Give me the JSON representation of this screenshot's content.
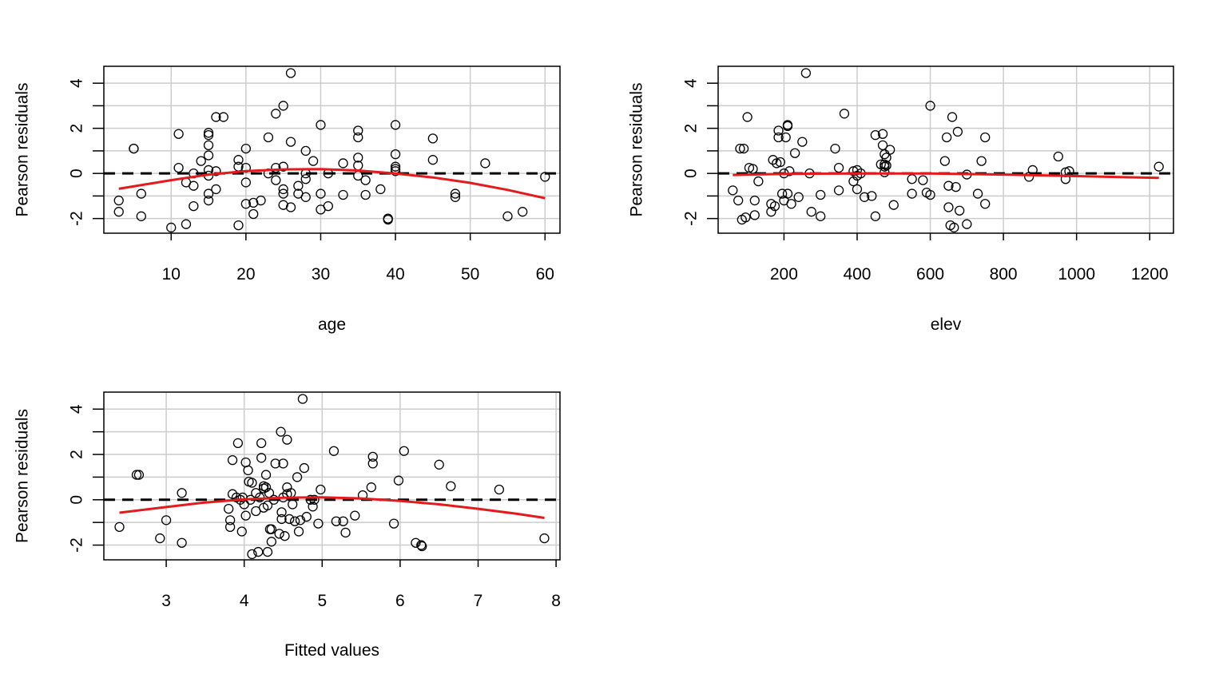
{
  "colors": {
    "points": "#000000",
    "smooth": "#e41a1c",
    "reference": "#000000",
    "grid": "#cccccc"
  },
  "chart_data": [
    {
      "type": "scatter",
      "xlabel": "age",
      "ylabel": "Pearson residuals",
      "xlim": [
        1,
        62
      ],
      "ylim": [
        -2.65,
        4.75
      ],
      "xticks": [
        10,
        20,
        30,
        40,
        50,
        60
      ],
      "yticks": [
        -2,
        0,
        2,
        4
      ],
      "xgrid": [
        10,
        20,
        30,
        40,
        50,
        60
      ],
      "ygrid": [
        -2,
        -1,
        0,
        1,
        2,
        3,
        4
      ],
      "grid": true,
      "reference_line": 0,
      "points": [
        [
          3,
          -1.2
        ],
        [
          3,
          -1.7
        ],
        [
          5,
          1.1
        ],
        [
          5,
          1.1
        ],
        [
          6,
          -0.9
        ],
        [
          6,
          -1.9
        ],
        [
          10,
          -2.4
        ],
        [
          11,
          1.75
        ],
        [
          11,
          0.25
        ],
        [
          12,
          -0.4
        ],
        [
          12,
          -2.25
        ],
        [
          13,
          0.0
        ],
        [
          13,
          -0.55
        ],
        [
          13,
          -1.45
        ],
        [
          14,
          0.55
        ],
        [
          15,
          1.8
        ],
        [
          15,
          1.7
        ],
        [
          15,
          1.25
        ],
        [
          15,
          0.8
        ],
        [
          15,
          0.15
        ],
        [
          15,
          -0.1
        ],
        [
          15,
          -0.9
        ],
        [
          15,
          -1.2
        ],
        [
          16,
          2.5
        ],
        [
          16,
          0.1
        ],
        [
          16,
          -0.7
        ],
        [
          17,
          2.5
        ],
        [
          19,
          0.6
        ],
        [
          19,
          0.3
        ],
        [
          19,
          -2.3
        ],
        [
          20,
          1.1
        ],
        [
          20,
          0.25
        ],
        [
          20,
          -0.4
        ],
        [
          20,
          -1.35
        ],
        [
          21,
          -1.3
        ],
        [
          21,
          -1.8
        ],
        [
          22,
          -1.2
        ],
        [
          23,
          1.6
        ],
        [
          23,
          0.0
        ],
        [
          24,
          2.65
        ],
        [
          24,
          0.25
        ],
        [
          24,
          -0.3
        ],
        [
          25,
          3.0
        ],
        [
          25,
          0.3
        ],
        [
          25,
          -0.7
        ],
        [
          25,
          -0.9
        ],
        [
          25,
          -1.4
        ],
        [
          26,
          4.45
        ],
        [
          26,
          1.4
        ],
        [
          26,
          -1.5
        ],
        [
          27,
          -0.55
        ],
        [
          27,
          -0.9
        ],
        [
          28,
          1.0
        ],
        [
          28,
          0.0
        ],
        [
          28,
          -0.25
        ],
        [
          28,
          -1.05
        ],
        [
          29,
          0.55
        ],
        [
          30,
          2.15
        ],
        [
          30,
          -0.9
        ],
        [
          30,
          -1.6
        ],
        [
          31,
          0.0
        ],
        [
          31,
          -1.45
        ],
        [
          33,
          0.45
        ],
        [
          33,
          -0.95
        ],
        [
          35,
          1.9
        ],
        [
          35,
          1.6
        ],
        [
          35,
          0.7
        ],
        [
          35,
          0.35
        ],
        [
          35,
          -0.1
        ],
        [
          36,
          -0.3
        ],
        [
          36,
          -0.95
        ],
        [
          38,
          -0.7
        ],
        [
          39,
          -2.0
        ],
        [
          39,
          -2.05
        ],
        [
          40,
          2.15
        ],
        [
          40,
          0.85
        ],
        [
          40,
          0.3
        ],
        [
          40,
          0.2
        ],
        [
          40,
          0.1
        ],
        [
          45,
          1.55
        ],
        [
          45,
          0.6
        ],
        [
          48,
          -0.9
        ],
        [
          48,
          -1.05
        ],
        [
          52,
          0.45
        ],
        [
          55,
          -1.9
        ],
        [
          57,
          -1.7
        ],
        [
          60,
          -0.15
        ]
      ],
      "smooth": [
        [
          3,
          -0.68
        ],
        [
          10,
          -0.3
        ],
        [
          15,
          -0.05
        ],
        [
          20,
          0.1
        ],
        [
          25,
          0.18
        ],
        [
          30,
          0.19
        ],
        [
          35,
          0.13
        ],
        [
          40,
          0.0
        ],
        [
          45,
          -0.18
        ],
        [
          50,
          -0.42
        ],
        [
          55,
          -0.73
        ],
        [
          60,
          -1.1
        ]
      ]
    },
    {
      "type": "scatter",
      "xlabel": "elev",
      "ylabel": "Pearson residuals",
      "xlim": [
        20,
        1265
      ],
      "ylim": [
        -2.65,
        4.75
      ],
      "xticks": [
        200,
        400,
        600,
        800,
        1000,
        1200
      ],
      "yticks": [
        -2,
        0,
        2,
        4
      ],
      "xgrid": [
        200,
        400,
        600,
        800,
        1000,
        1200
      ],
      "ygrid": [
        -2,
        -1,
        0,
        1,
        2,
        3,
        4
      ],
      "grid": true,
      "reference_line": 0,
      "points": [
        [
          60,
          -0.75
        ],
        [
          75,
          -1.2
        ],
        [
          80,
          1.1
        ],
        [
          85,
          -2.05
        ],
        [
          90,
          1.1
        ],
        [
          95,
          -1.95
        ],
        [
          100,
          2.5
        ],
        [
          105,
          0.25
        ],
        [
          115,
          0.2
        ],
        [
          120,
          -1.2
        ],
        [
          120,
          -1.85
        ],
        [
          130,
          -0.35
        ],
        [
          165,
          -1.35
        ],
        [
          165,
          -1.7
        ],
        [
          170,
          0.6
        ],
        [
          175,
          -1.45
        ],
        [
          180,
          0.45
        ],
        [
          185,
          1.9
        ],
        [
          185,
          1.6
        ],
        [
          190,
          0.5
        ],
        [
          195,
          -0.9
        ],
        [
          200,
          0.0
        ],
        [
          200,
          -1.2
        ],
        [
          205,
          1.6
        ],
        [
          210,
          2.15
        ],
        [
          210,
          2.1
        ],
        [
          210,
          -0.9
        ],
        [
          215,
          0.1
        ],
        [
          220,
          -1.35
        ],
        [
          230,
          0.9
        ],
        [
          240,
          -1.05
        ],
        [
          250,
          1.4
        ],
        [
          260,
          4.45
        ],
        [
          270,
          0.0
        ],
        [
          275,
          -1.7
        ],
        [
          300,
          -1.9
        ],
        [
          300,
          -0.95
        ],
        [
          340,
          1.1
        ],
        [
          350,
          0.25
        ],
        [
          350,
          -0.75
        ],
        [
          365,
          2.65
        ],
        [
          390,
          0.1
        ],
        [
          390,
          -0.35
        ],
        [
          400,
          0.15
        ],
        [
          400,
          -0.1
        ],
        [
          400,
          -0.7
        ],
        [
          410,
          0.0
        ],
        [
          420,
          -1.05
        ],
        [
          440,
          -1.0
        ],
        [
          450,
          1.7
        ],
        [
          450,
          -1.9
        ],
        [
          465,
          0.4
        ],
        [
          470,
          1.75
        ],
        [
          470,
          1.25
        ],
        [
          475,
          0.85
        ],
        [
          475,
          0.4
        ],
        [
          475,
          0.3
        ],
        [
          475,
          0.05
        ],
        [
          480,
          0.7
        ],
        [
          480,
          0.35
        ],
        [
          490,
          1.05
        ],
        [
          500,
          -1.4
        ],
        [
          550,
          -0.25
        ],
        [
          550,
          -0.9
        ],
        [
          580,
          -0.3
        ],
        [
          590,
          -0.85
        ],
        [
          600,
          3.0
        ],
        [
          600,
          -0.95
        ],
        [
          640,
          0.55
        ],
        [
          645,
          1.6
        ],
        [
          650,
          -0.55
        ],
        [
          650,
          -1.5
        ],
        [
          655,
          -2.3
        ],
        [
          660,
          2.5
        ],
        [
          665,
          -2.4
        ],
        [
          670,
          -0.6
        ],
        [
          675,
          1.85
        ],
        [
          680,
          -1.65
        ],
        [
          700,
          -0.05
        ],
        [
          700,
          -2.25
        ],
        [
          730,
          -0.9
        ],
        [
          740,
          0.55
        ],
        [
          750,
          1.6
        ],
        [
          750,
          -1.35
        ],
        [
          870,
          -0.15
        ],
        [
          880,
          0.15
        ],
        [
          950,
          0.75
        ],
        [
          970,
          0.05
        ],
        [
          970,
          -0.25
        ],
        [
          980,
          0.1
        ],
        [
          1225,
          0.3
        ]
      ],
      "smooth": [
        [
          60,
          -0.07
        ],
        [
          200,
          -0.02
        ],
        [
          400,
          0.0
        ],
        [
          600,
          0.0
        ],
        [
          800,
          -0.05
        ],
        [
          1000,
          -0.12
        ],
        [
          1225,
          -0.2
        ]
      ]
    },
    {
      "type": "scatter",
      "xlabel": "Fitted values",
      "ylabel": "Pearson residuals",
      "xlim": [
        2.2,
        8.05
      ],
      "ylim": [
        -2.65,
        4.75
      ],
      "xticks": [
        3,
        4,
        5,
        6,
        7,
        8
      ],
      "yticks": [
        -2,
        0,
        2,
        4
      ],
      "xgrid": [
        3,
        4,
        5,
        6,
        7,
        8
      ],
      "ygrid": [
        -2,
        -1,
        0,
        1,
        2,
        3,
        4
      ],
      "grid": true,
      "reference_line": 0,
      "points": [
        [
          2.4,
          -1.2
        ],
        [
          2.62,
          1.1
        ],
        [
          2.65,
          1.1
        ],
        [
          2.92,
          -1.7
        ],
        [
          3.0,
          -0.9
        ],
        [
          3.2,
          -1.9
        ],
        [
          3.2,
          0.3
        ],
        [
          3.8,
          -0.4
        ],
        [
          3.82,
          -0.9
        ],
        [
          3.82,
          -1.2
        ],
        [
          3.85,
          1.75
        ],
        [
          3.85,
          0.25
        ],
        [
          3.9,
          0.1
        ],
        [
          3.92,
          2.5
        ],
        [
          3.95,
          0.0
        ],
        [
          3.97,
          -1.4
        ],
        [
          3.98,
          0.1
        ],
        [
          4.0,
          -0.2
        ],
        [
          4.02,
          -0.7
        ],
        [
          4.02,
          1.65
        ],
        [
          4.05,
          1.3
        ],
        [
          4.06,
          0.8
        ],
        [
          4.08,
          0.0
        ],
        [
          4.1,
          0.75
        ],
        [
          4.1,
          -2.4
        ],
        [
          4.15,
          0.3
        ],
        [
          4.15,
          -0.5
        ],
        [
          4.18,
          -2.3
        ],
        [
          4.2,
          0.1
        ],
        [
          4.22,
          1.85
        ],
        [
          4.22,
          2.5
        ],
        [
          4.25,
          0.6
        ],
        [
          4.25,
          0.5
        ],
        [
          4.25,
          -0.35
        ],
        [
          4.28,
          1.1
        ],
        [
          4.28,
          0.55
        ],
        [
          4.3,
          -0.25
        ],
        [
          4.3,
          -2.3
        ],
        [
          4.32,
          0.3
        ],
        [
          4.33,
          -1.3
        ],
        [
          4.35,
          -1.85
        ],
        [
          4.35,
          -1.3
        ],
        [
          4.38,
          0.0
        ],
        [
          4.4,
          1.6
        ],
        [
          4.45,
          -1.5
        ],
        [
          4.47,
          3.0
        ],
        [
          4.48,
          -0.55
        ],
        [
          4.48,
          -0.85
        ],
        [
          4.5,
          1.6
        ],
        [
          4.5,
          0.1
        ],
        [
          4.52,
          -1.6
        ],
        [
          4.55,
          2.65
        ],
        [
          4.55,
          0.55
        ],
        [
          4.55,
          0.25
        ],
        [
          4.58,
          -0.85
        ],
        [
          4.6,
          0.3
        ],
        [
          4.62,
          -0.2
        ],
        [
          4.65,
          -0.95
        ],
        [
          4.68,
          1.0
        ],
        [
          4.7,
          -1.4
        ],
        [
          4.72,
          -0.9
        ],
        [
          4.75,
          4.45
        ],
        [
          4.77,
          1.4
        ],
        [
          4.8,
          -0.75
        ],
        [
          4.85,
          0.0
        ],
        [
          4.88,
          -0.3
        ],
        [
          4.9,
          0.0
        ],
        [
          4.95,
          -1.05
        ],
        [
          4.98,
          0.45
        ],
        [
          5.15,
          2.15
        ],
        [
          5.18,
          -0.95
        ],
        [
          5.27,
          -0.95
        ],
        [
          5.3,
          -1.45
        ],
        [
          5.42,
          -0.7
        ],
        [
          5.52,
          0.2
        ],
        [
          5.63,
          0.55
        ],
        [
          5.65,
          1.9
        ],
        [
          5.65,
          1.6
        ],
        [
          5.92,
          -1.05
        ],
        [
          5.98,
          0.85
        ],
        [
          6.05,
          2.15
        ],
        [
          6.2,
          -1.9
        ],
        [
          6.27,
          -2.0
        ],
        [
          6.28,
          -2.05
        ],
        [
          6.5,
          1.55
        ],
        [
          6.65,
          0.6
        ],
        [
          7.27,
          0.45
        ],
        [
          7.85,
          -1.7
        ]
      ],
      "smooth": [
        [
          2.4,
          -0.57
        ],
        [
          3.0,
          -0.32
        ],
        [
          3.5,
          -0.12
        ],
        [
          4.0,
          0.02
        ],
        [
          4.5,
          0.09
        ],
        [
          5.0,
          0.11
        ],
        [
          5.5,
          0.06
        ],
        [
          6.0,
          -0.05
        ],
        [
          6.5,
          -0.2
        ],
        [
          7.0,
          -0.4
        ],
        [
          7.5,
          -0.62
        ],
        [
          7.85,
          -0.8
        ]
      ]
    }
  ]
}
